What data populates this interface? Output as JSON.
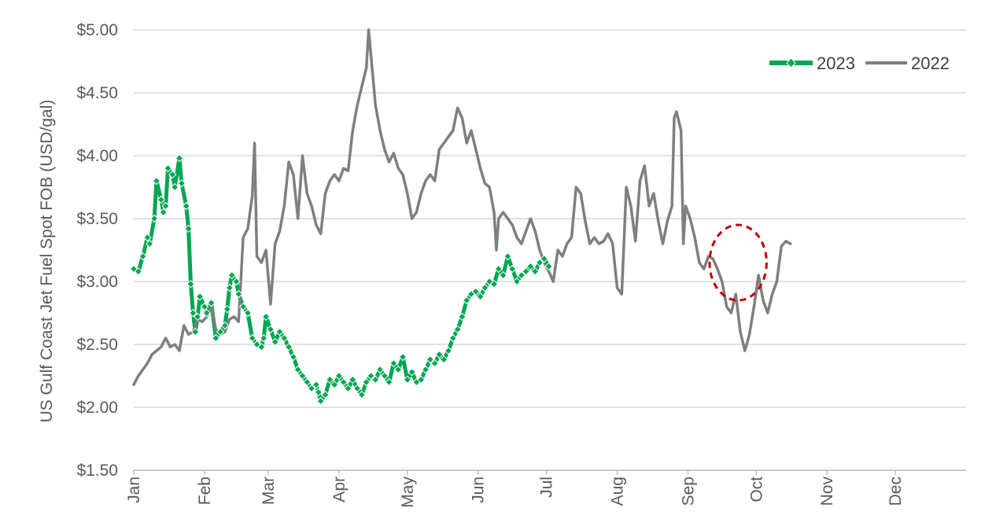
{
  "chart_data": {
    "type": "line",
    "title": "",
    "ylabel": "US Gulf Coast Jet Fuel Spot FOB (USD/gal)",
    "xlabel": "",
    "ylim": [
      1.5,
      5.0
    ],
    "xlim": [
      0,
      365
    ],
    "y_ticks": [
      {
        "value": 1.5,
        "label": "$1.50"
      },
      {
        "value": 2.0,
        "label": "$2.00"
      },
      {
        "value": 2.5,
        "label": "$2.50"
      },
      {
        "value": 3.0,
        "label": "$3.00"
      },
      {
        "value": 3.5,
        "label": "$3.50"
      },
      {
        "value": 4.0,
        "label": "$4.00"
      },
      {
        "value": 4.5,
        "label": "$4.50"
      },
      {
        "value": 5.0,
        "label": "$5.00"
      }
    ],
    "x_ticks": [
      {
        "day": 0,
        "label": "Jan"
      },
      {
        "day": 31,
        "label": "Feb"
      },
      {
        "day": 59,
        "label": "Mar"
      },
      {
        "day": 90,
        "label": "Apr"
      },
      {
        "day": 120,
        "label": "May"
      },
      {
        "day": 151,
        "label": "Jun"
      },
      {
        "day": 181,
        "label": "Jul"
      },
      {
        "day": 212,
        "label": "Aug"
      },
      {
        "day": 243,
        "label": "Sep"
      },
      {
        "day": 273,
        "label": "Oct"
      },
      {
        "day": 304,
        "label": "Nov"
      },
      {
        "day": 334,
        "label": "Dec"
      }
    ],
    "grid": "horizontal",
    "legend_position": "top-right",
    "annotation": {
      "type": "dashed-circle",
      "color": "#C00000",
      "center_day": 265,
      "center_value": 3.15,
      "radius_days": 12.5,
      "radius_value": 0.3
    },
    "series": [
      {
        "name": "2023",
        "color": "#00A651",
        "marker": "diamond",
        "points": [
          [
            0,
            3.1
          ],
          [
            2,
            3.08
          ],
          [
            4,
            3.2
          ],
          [
            6,
            3.35
          ],
          [
            7,
            3.3
          ],
          [
            9,
            3.5
          ],
          [
            10,
            3.8
          ],
          [
            12,
            3.65
          ],
          [
            13,
            3.55
          ],
          [
            14,
            3.6
          ],
          [
            15,
            3.9
          ],
          [
            17,
            3.85
          ],
          [
            18,
            3.75
          ],
          [
            20,
            3.98
          ],
          [
            21,
            3.78
          ],
          [
            23,
            3.6
          ],
          [
            24,
            3.42
          ],
          [
            25,
            2.98
          ],
          [
            26,
            2.75
          ],
          [
            27,
            2.6
          ],
          [
            28,
            2.72
          ],
          [
            29,
            2.88
          ],
          [
            31,
            2.8
          ],
          [
            32,
            2.75
          ],
          [
            34,
            2.83
          ],
          [
            36,
            2.55
          ],
          [
            38,
            2.6
          ],
          [
            40,
            2.65
          ],
          [
            41,
            2.78
          ],
          [
            42,
            2.95
          ],
          [
            43,
            3.05
          ],
          [
            45,
            3.0
          ],
          [
            46,
            2.9
          ],
          [
            48,
            2.8
          ],
          [
            50,
            2.75
          ],
          [
            52,
            2.55
          ],
          [
            54,
            2.5
          ],
          [
            56,
            2.48
          ],
          [
            57,
            2.55
          ],
          [
            58,
            2.72
          ],
          [
            60,
            2.62
          ],
          [
            62,
            2.52
          ],
          [
            64,
            2.6
          ],
          [
            66,
            2.55
          ],
          [
            68,
            2.48
          ],
          [
            70,
            2.4
          ],
          [
            72,
            2.3
          ],
          [
            74,
            2.25
          ],
          [
            76,
            2.2
          ],
          [
            78,
            2.15
          ],
          [
            80,
            2.18
          ],
          [
            81,
            2.12
          ],
          [
            82,
            2.05
          ],
          [
            84,
            2.1
          ],
          [
            86,
            2.22
          ],
          [
            88,
            2.18
          ],
          [
            90,
            2.25
          ],
          [
            92,
            2.2
          ],
          [
            94,
            2.15
          ],
          [
            96,
            2.22
          ],
          [
            98,
            2.15
          ],
          [
            100,
            2.1
          ],
          [
            102,
            2.2
          ],
          [
            104,
            2.25
          ],
          [
            106,
            2.22
          ],
          [
            108,
            2.3
          ],
          [
            110,
            2.25
          ],
          [
            112,
            2.2
          ],
          [
            114,
            2.35
          ],
          [
            116,
            2.3
          ],
          [
            118,
            2.4
          ],
          [
            120,
            2.22
          ],
          [
            122,
            2.28
          ],
          [
            124,
            2.2
          ],
          [
            126,
            2.22
          ],
          [
            128,
            2.3
          ],
          [
            130,
            2.38
          ],
          [
            132,
            2.35
          ],
          [
            134,
            2.42
          ],
          [
            136,
            2.38
          ],
          [
            138,
            2.45
          ],
          [
            140,
            2.55
          ],
          [
            142,
            2.62
          ],
          [
            144,
            2.72
          ],
          [
            146,
            2.85
          ],
          [
            148,
            2.9
          ],
          [
            150,
            2.92
          ],
          [
            152,
            2.88
          ],
          [
            154,
            2.95
          ],
          [
            156,
            3.0
          ],
          [
            158,
            2.98
          ],
          [
            160,
            3.1
          ],
          [
            162,
            3.05
          ],
          [
            164,
            3.2
          ],
          [
            166,
            3.1
          ],
          [
            168,
            3.0
          ],
          [
            170,
            3.05
          ],
          [
            172,
            3.08
          ],
          [
            174,
            3.12
          ],
          [
            176,
            3.08
          ],
          [
            178,
            3.15
          ],
          [
            180,
            3.18
          ],
          [
            182,
            3.12
          ]
        ]
      },
      {
        "name": "2022",
        "color": "#7F7F7F",
        "marker": "none",
        "points": [
          [
            0,
            2.18
          ],
          [
            2,
            2.25
          ],
          [
            4,
            2.3
          ],
          [
            6,
            2.35
          ],
          [
            8,
            2.42
          ],
          [
            10,
            2.45
          ],
          [
            12,
            2.48
          ],
          [
            14,
            2.55
          ],
          [
            16,
            2.48
          ],
          [
            18,
            2.5
          ],
          [
            20,
            2.45
          ],
          [
            22,
            2.65
          ],
          [
            24,
            2.58
          ],
          [
            26,
            2.6
          ],
          [
            28,
            2.7
          ],
          [
            30,
            2.68
          ],
          [
            32,
            2.72
          ],
          [
            34,
            2.8
          ],
          [
            36,
            2.62
          ],
          [
            38,
            2.58
          ],
          [
            40,
            2.6
          ],
          [
            42,
            2.7
          ],
          [
            44,
            2.72
          ],
          [
            46,
            2.68
          ],
          [
            48,
            3.35
          ],
          [
            50,
            3.42
          ],
          [
            52,
            3.68
          ],
          [
            53,
            4.1
          ],
          [
            54,
            3.2
          ],
          [
            56,
            3.15
          ],
          [
            58,
            3.25
          ],
          [
            60,
            2.82
          ],
          [
            62,
            3.3
          ],
          [
            64,
            3.4
          ],
          [
            66,
            3.6
          ],
          [
            68,
            3.95
          ],
          [
            70,
            3.85
          ],
          [
            72,
            3.5
          ],
          [
            74,
            4.0
          ],
          [
            76,
            3.7
          ],
          [
            78,
            3.6
          ],
          [
            80,
            3.45
          ],
          [
            82,
            3.38
          ],
          [
            84,
            3.7
          ],
          [
            86,
            3.8
          ],
          [
            88,
            3.85
          ],
          [
            90,
            3.8
          ],
          [
            92,
            3.9
          ],
          [
            94,
            3.88
          ],
          [
            96,
            4.2
          ],
          [
            98,
            4.4
          ],
          [
            100,
            4.55
          ],
          [
            102,
            4.7
          ],
          [
            103,
            5.0
          ],
          [
            104,
            4.8
          ],
          [
            106,
            4.4
          ],
          [
            108,
            4.2
          ],
          [
            110,
            4.05
          ],
          [
            112,
            3.95
          ],
          [
            114,
            4.02
          ],
          [
            116,
            3.9
          ],
          [
            118,
            3.85
          ],
          [
            120,
            3.7
          ],
          [
            122,
            3.5
          ],
          [
            124,
            3.55
          ],
          [
            126,
            3.7
          ],
          [
            128,
            3.8
          ],
          [
            130,
            3.85
          ],
          [
            132,
            3.8
          ],
          [
            134,
            4.05
          ],
          [
            136,
            4.1
          ],
          [
            138,
            4.15
          ],
          [
            140,
            4.2
          ],
          [
            142,
            4.38
          ],
          [
            144,
            4.3
          ],
          [
            146,
            4.1
          ],
          [
            148,
            4.2
          ],
          [
            150,
            4.05
          ],
          [
            152,
            3.9
          ],
          [
            154,
            3.78
          ],
          [
            156,
            3.75
          ],
          [
            158,
            3.55
          ],
          [
            159,
            3.25
          ],
          [
            160,
            3.5
          ],
          [
            162,
            3.55
          ],
          [
            164,
            3.5
          ],
          [
            166,
            3.45
          ],
          [
            168,
            3.35
          ],
          [
            170,
            3.3
          ],
          [
            172,
            3.4
          ],
          [
            174,
            3.5
          ],
          [
            176,
            3.4
          ],
          [
            178,
            3.25
          ],
          [
            180,
            3.15
          ],
          [
            182,
            3.08
          ],
          [
            184,
            3.0
          ],
          [
            186,
            3.25
          ],
          [
            188,
            3.2
          ],
          [
            190,
            3.3
          ],
          [
            192,
            3.35
          ],
          [
            194,
            3.75
          ],
          [
            196,
            3.7
          ],
          [
            198,
            3.48
          ],
          [
            200,
            3.3
          ],
          [
            202,
            3.35
          ],
          [
            204,
            3.3
          ],
          [
            206,
            3.32
          ],
          [
            208,
            3.38
          ],
          [
            210,
            3.3
          ],
          [
            212,
            2.95
          ],
          [
            214,
            2.9
          ],
          [
            216,
            3.75
          ],
          [
            218,
            3.6
          ],
          [
            220,
            3.32
          ],
          [
            222,
            3.8
          ],
          [
            224,
            3.92
          ],
          [
            226,
            3.6
          ],
          [
            228,
            3.7
          ],
          [
            230,
            3.48
          ],
          [
            232,
            3.3
          ],
          [
            234,
            3.48
          ],
          [
            236,
            3.6
          ],
          [
            237,
            4.3
          ],
          [
            238,
            4.35
          ],
          [
            240,
            4.2
          ],
          [
            241,
            3.3
          ],
          [
            242,
            3.6
          ],
          [
            244,
            3.5
          ],
          [
            246,
            3.35
          ],
          [
            248,
            3.15
          ],
          [
            250,
            3.1
          ],
          [
            252,
            3.2
          ],
          [
            254,
            3.18
          ],
          [
            256,
            3.1
          ],
          [
            258,
            3.0
          ],
          [
            260,
            2.8
          ],
          [
            262,
            2.75
          ],
          [
            264,
            2.9
          ],
          [
            266,
            2.6
          ],
          [
            268,
            2.45
          ],
          [
            270,
            2.58
          ],
          [
            272,
            2.8
          ],
          [
            274,
            3.05
          ],
          [
            276,
            2.85
          ],
          [
            278,
            2.75
          ],
          [
            280,
            2.9
          ],
          [
            282,
            3.0
          ],
          [
            284,
            3.28
          ],
          [
            286,
            3.32
          ],
          [
            288,
            3.3
          ]
        ]
      }
    ]
  },
  "legend": {
    "items": [
      {
        "label": "2023",
        "color": "#00A651"
      },
      {
        "label": "2022",
        "color": "#7F7F7F"
      }
    ]
  }
}
